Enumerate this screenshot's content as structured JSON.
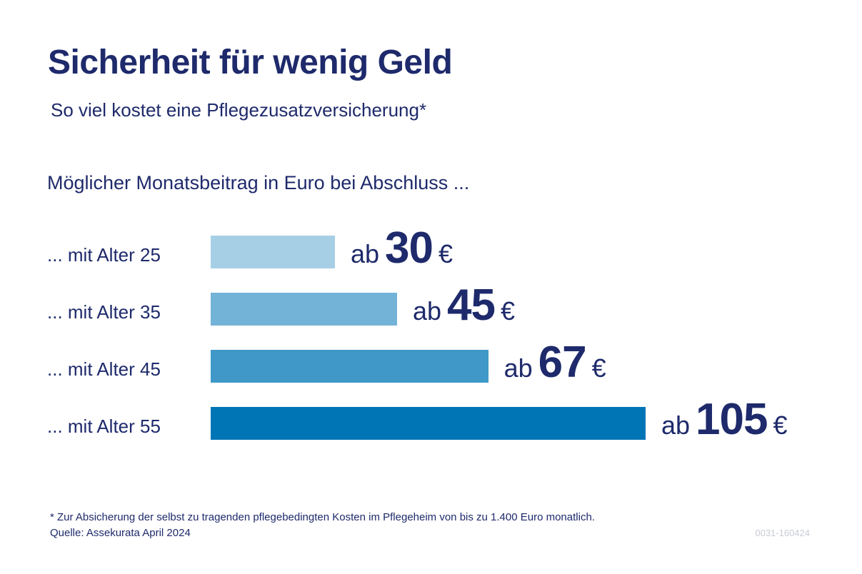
{
  "title": "Sicherheit für wenig Geld",
  "subtitle": "So viel kostet eine Pflegezusatzversicherung*",
  "caption": "Möglicher Monatsbeitrag in Euro bei Abschluss ...",
  "footnote": "* Zur Absicherung der selbst zu tragenden pflegebedingten Kosten im Pflegeheim von bis zu 1.400 Euro monatlich.",
  "source": "Quelle: Assekurata April 2024",
  "code": "0031-160424",
  "chart_data": {
    "type": "bar",
    "orientation": "horizontal",
    "title": "Sicherheit für wenig Geld",
    "subtitle": "So viel kostet eine Pflegezusatzversicherung*",
    "categories": [
      "... mit Alter 25",
      "... mit Alter 35",
      "... mit Alter 45",
      "... mit Alter 55"
    ],
    "values": [
      30,
      45,
      67,
      105
    ],
    "value_prefix": "ab",
    "value_unit": "€",
    "colors": [
      "#a6cfe6",
      "#74b3d8",
      "#3f98c8",
      "#0075b6"
    ],
    "grid": false,
    "legend": "none"
  }
}
